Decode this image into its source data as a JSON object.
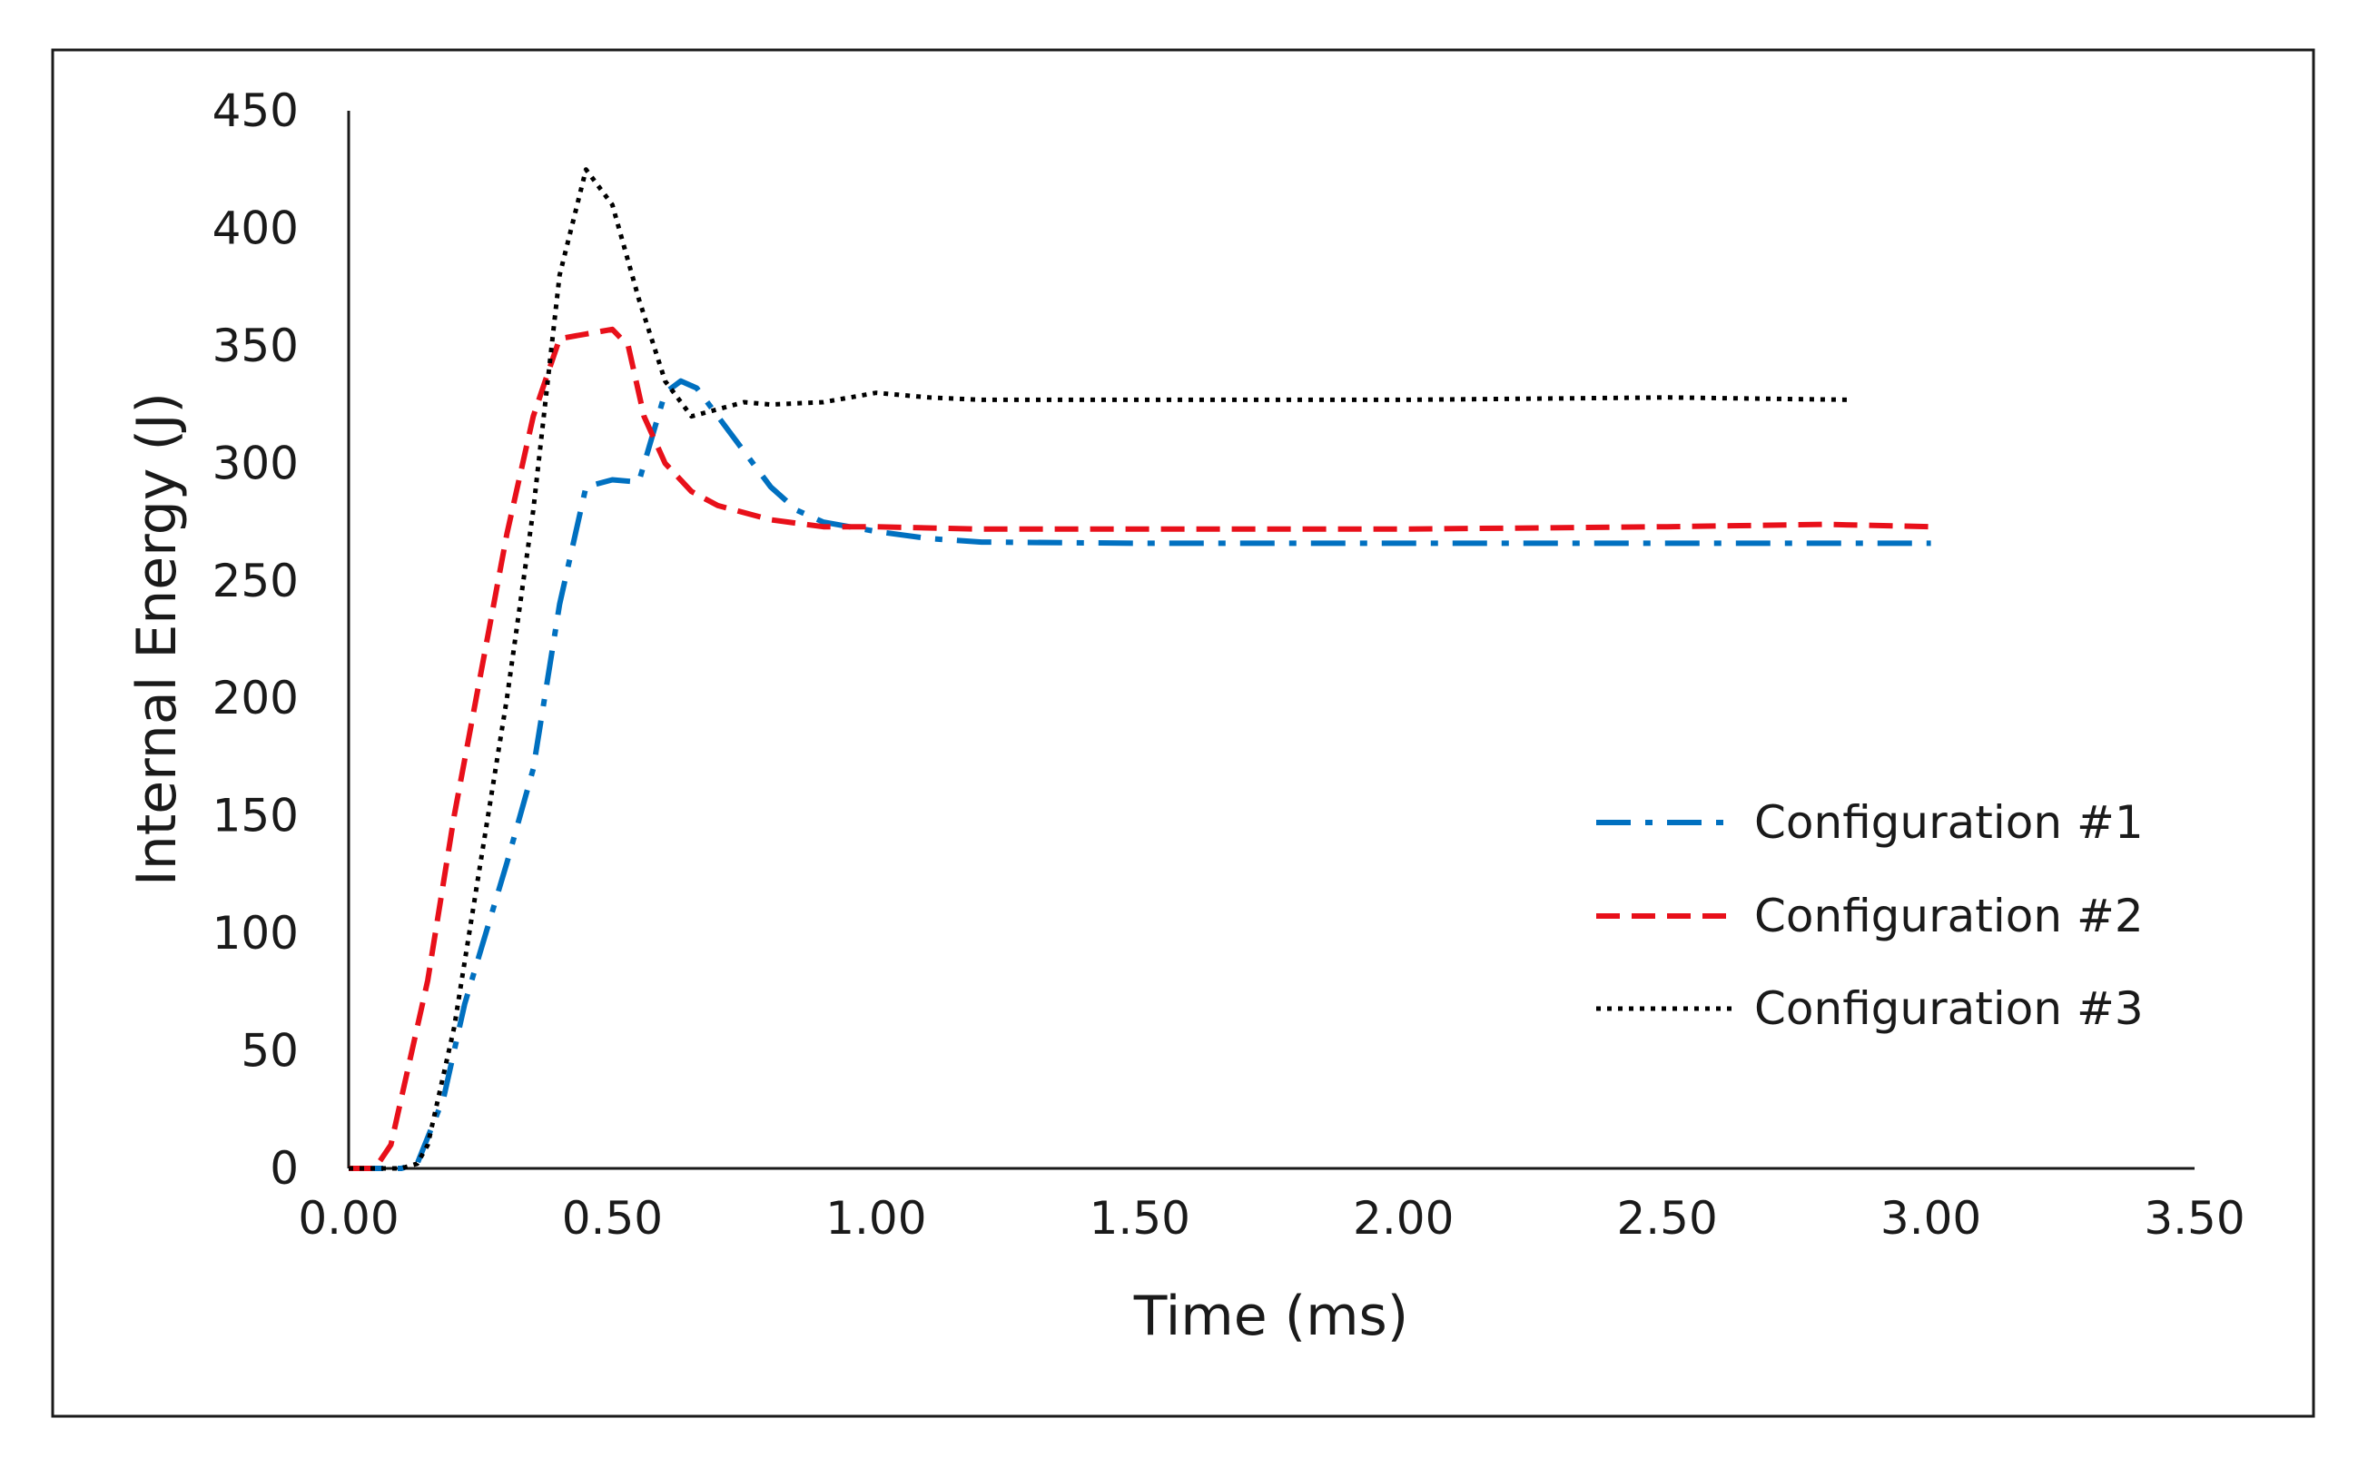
{
  "chart_data": {
    "type": "line",
    "title": "",
    "xlabel": "Time (ms)",
    "ylabel": "Internal Energy (J)",
    "xlim": [
      0,
      3.5
    ],
    "ylim": [
      0,
      450
    ],
    "x_ticks": [
      0,
      0.5,
      1.0,
      1.5,
      2.0,
      2.5,
      3.0,
      3.5
    ],
    "x_tick_labels": [
      "0.00",
      "0.50",
      "1.00",
      "1.50",
      "2.00",
      "2.50",
      "3.00",
      "3.50"
    ],
    "y_ticks": [
      0,
      50,
      100,
      150,
      200,
      250,
      300,
      350,
      400,
      450
    ],
    "y_tick_labels": [
      "0",
      "50",
      "100",
      "150",
      "200",
      "250",
      "300",
      "350",
      "400",
      "450"
    ],
    "grid": false,
    "legend_position": "right",
    "series": [
      {
        "name": "Configuration #1",
        "color": "#0070C0",
        "style": "dash-dot",
        "points": [
          [
            0,
            0
          ],
          [
            0.1,
            0
          ],
          [
            0.13,
            2
          ],
          [
            0.18,
            30
          ],
          [
            0.22,
            70
          ],
          [
            0.3,
            130
          ],
          [
            0.35,
            170
          ],
          [
            0.4,
            240
          ],
          [
            0.45,
            290
          ],
          [
            0.5,
            293
          ],
          [
            0.55,
            292
          ],
          [
            0.6,
            330
          ],
          [
            0.63,
            335
          ],
          [
            0.66,
            332
          ],
          [
            0.7,
            320
          ],
          [
            0.75,
            305
          ],
          [
            0.8,
            290
          ],
          [
            0.85,
            280
          ],
          [
            0.9,
            275
          ],
          [
            1.0,
            271
          ],
          [
            1.1,
            268
          ],
          [
            1.2,
            266.5
          ],
          [
            1.5,
            266
          ],
          [
            2.0,
            266
          ],
          [
            2.5,
            266
          ],
          [
            3.0,
            266
          ]
        ]
      },
      {
        "name": "Configuration #2",
        "color": "#E8101A",
        "style": "dashed",
        "points": [
          [
            0,
            0
          ],
          [
            0.05,
            0
          ],
          [
            0.08,
            10
          ],
          [
            0.15,
            80
          ],
          [
            0.2,
            150
          ],
          [
            0.3,
            270
          ],
          [
            0.35,
            320
          ],
          [
            0.4,
            353
          ],
          [
            0.45,
            355
          ],
          [
            0.5,
            357
          ],
          [
            0.53,
            350
          ],
          [
            0.56,
            320
          ],
          [
            0.6,
            300
          ],
          [
            0.65,
            288
          ],
          [
            0.7,
            282
          ],
          [
            0.8,
            276
          ],
          [
            0.9,
            273
          ],
          [
            1.0,
            273
          ],
          [
            1.2,
            272
          ],
          [
            1.5,
            272
          ],
          [
            2.0,
            272
          ],
          [
            2.5,
            273
          ],
          [
            2.8,
            274
          ],
          [
            3.0,
            273
          ]
        ]
      },
      {
        "name": "Configuration #3",
        "color": "#000000",
        "style": "dotted",
        "points": [
          [
            0,
            0
          ],
          [
            0.1,
            0
          ],
          [
            0.13,
            2
          ],
          [
            0.15,
            10
          ],
          [
            0.2,
            60
          ],
          [
            0.25,
            130
          ],
          [
            0.3,
            200
          ],
          [
            0.35,
            280
          ],
          [
            0.4,
            380
          ],
          [
            0.45,
            425
          ],
          [
            0.5,
            410
          ],
          [
            0.55,
            370
          ],
          [
            0.6,
            335
          ],
          [
            0.65,
            320
          ],
          [
            0.7,
            323
          ],
          [
            0.75,
            326
          ],
          [
            0.8,
            325
          ],
          [
            0.9,
            326
          ],
          [
            1.0,
            330
          ],
          [
            1.1,
            328
          ],
          [
            1.2,
            327
          ],
          [
            1.5,
            327
          ],
          [
            2.0,
            327
          ],
          [
            2.5,
            328
          ],
          [
            2.85,
            327
          ]
        ]
      }
    ]
  }
}
